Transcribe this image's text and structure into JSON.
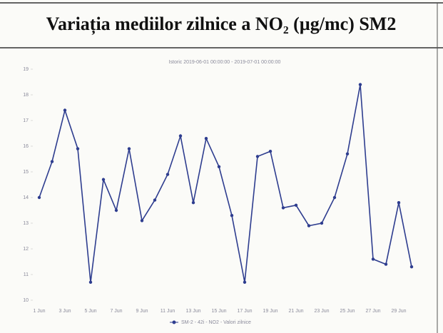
{
  "chart_data": {
    "type": "line",
    "title": "Variația mediilor zilnice a NO₂ (µg/mc) SM2",
    "subtitle": "Istoric 2019-06-01 00:00:00 - 2019-07-01 00:00:00",
    "categories": [
      "1 Jun",
      null,
      "3 Jun",
      null,
      "5 Jun",
      null,
      "7 Jun",
      null,
      "9 Jun",
      null,
      "11 Jun",
      null,
      "13 Jun",
      null,
      "15 Jun",
      null,
      "17 Jun",
      null,
      "19 Jun",
      null,
      "21 Jun",
      null,
      "23 Jun",
      null,
      "25 Jun",
      null,
      "27 Jun",
      null,
      "29 Jun",
      null
    ],
    "series": [
      {
        "name": "SM-2 - 42i - NO2 - Valori zilnice",
        "color": "#2e3d8f",
        "values": [
          14.0,
          15.4,
          17.4,
          15.9,
          10.7,
          14.7,
          13.5,
          15.9,
          13.1,
          13.9,
          14.9,
          16.4,
          13.8,
          16.3,
          15.2,
          13.3,
          10.7,
          15.6,
          15.8,
          13.6,
          13.7,
          12.9,
          13.0,
          14.0,
          15.7,
          18.4,
          11.6,
          11.4,
          13.8,
          11.3
        ]
      }
    ],
    "ylim": [
      10,
      19
    ],
    "yticks": [
      10,
      11,
      12,
      13,
      14,
      15,
      16,
      17,
      18,
      19
    ],
    "grid": false
  }
}
